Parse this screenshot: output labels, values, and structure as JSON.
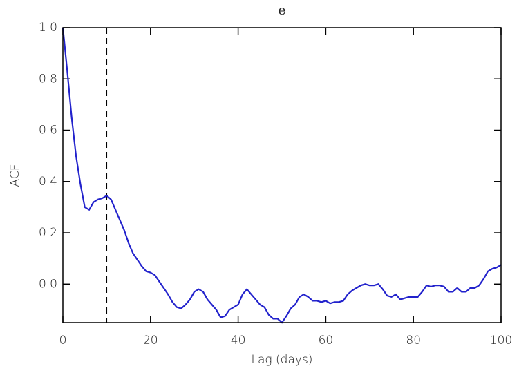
{
  "chart_data": {
    "type": "line",
    "title": "e",
    "x_label": "Lag (days)",
    "y_label": "ACF",
    "x": [
      0,
      1,
      2,
      3,
      4,
      5,
      6,
      7,
      8,
      9,
      10,
      11,
      12,
      13,
      14,
      15,
      16,
      17,
      18,
      19,
      20,
      21,
      22,
      23,
      24,
      25,
      26,
      27,
      28,
      29,
      30,
      31,
      32,
      33,
      34,
      35,
      36,
      37,
      38,
      39,
      40,
      41,
      42,
      43,
      44,
      45,
      46,
      47,
      48,
      49,
      50,
      51,
      52,
      53,
      54,
      55,
      56,
      57,
      58,
      59,
      60,
      61,
      62,
      63,
      64,
      65,
      66,
      67,
      68,
      69,
      70,
      71,
      72,
      73,
      74,
      75,
      76,
      77,
      78,
      79,
      80,
      81,
      82,
      83,
      84,
      85,
      86,
      87,
      88,
      89,
      90,
      91,
      92,
      93,
      94,
      95,
      96,
      97,
      98,
      99,
      100
    ],
    "series": [
      {
        "color": "#2222cc",
        "values": [
          1.0,
          0.83,
          0.65,
          0.5,
          0.39,
          0.3,
          0.29,
          0.32,
          0.33,
          0.335,
          0.345,
          0.33,
          0.29,
          0.25,
          0.21,
          0.16,
          0.12,
          0.095,
          0.07,
          0.05,
          0.045,
          0.035,
          0.01,
          -0.015,
          -0.04,
          -0.07,
          -0.09,
          -0.095,
          -0.08,
          -0.06,
          -0.03,
          -0.02,
          -0.03,
          -0.06,
          -0.08,
          -0.1,
          -0.13,
          -0.125,
          -0.1,
          -0.09,
          -0.08,
          -0.04,
          -0.02,
          -0.04,
          -0.06,
          -0.08,
          -0.09,
          -0.12,
          -0.135,
          -0.135,
          -0.15,
          -0.125,
          -0.095,
          -0.08,
          -0.05,
          -0.04,
          -0.05,
          -0.065,
          -0.065,
          -0.07,
          -0.065,
          -0.075,
          -0.07,
          -0.07,
          -0.065,
          -0.04,
          -0.025,
          -0.015,
          -0.005,
          0.0,
          -0.005,
          -0.005,
          0.0,
          -0.02,
          -0.045,
          -0.05,
          -0.04,
          -0.06,
          -0.055,
          -0.05,
          -0.05,
          -0.05,
          -0.03,
          -0.005,
          -0.01,
          -0.005,
          -0.005,
          -0.01,
          -0.03,
          -0.03,
          -0.015,
          -0.03,
          -0.03,
          -0.015,
          -0.015,
          -0.005,
          0.02,
          0.05,
          0.06,
          0.065,
          0.075
        ]
      }
    ],
    "xlim": [
      0,
      100
    ],
    "xticks": [
      0,
      20,
      40,
      60,
      80,
      100
    ],
    "ylim": [
      -0.15,
      1.0
    ],
    "yticks": [
      {
        "value": 0,
        "label": "0.0"
      },
      0.2,
      0.4,
      0.6,
      0.8,
      {
        "value": 1,
        "label": "1.0"
      }
    ],
    "vlines": [
      10
    ]
  }
}
